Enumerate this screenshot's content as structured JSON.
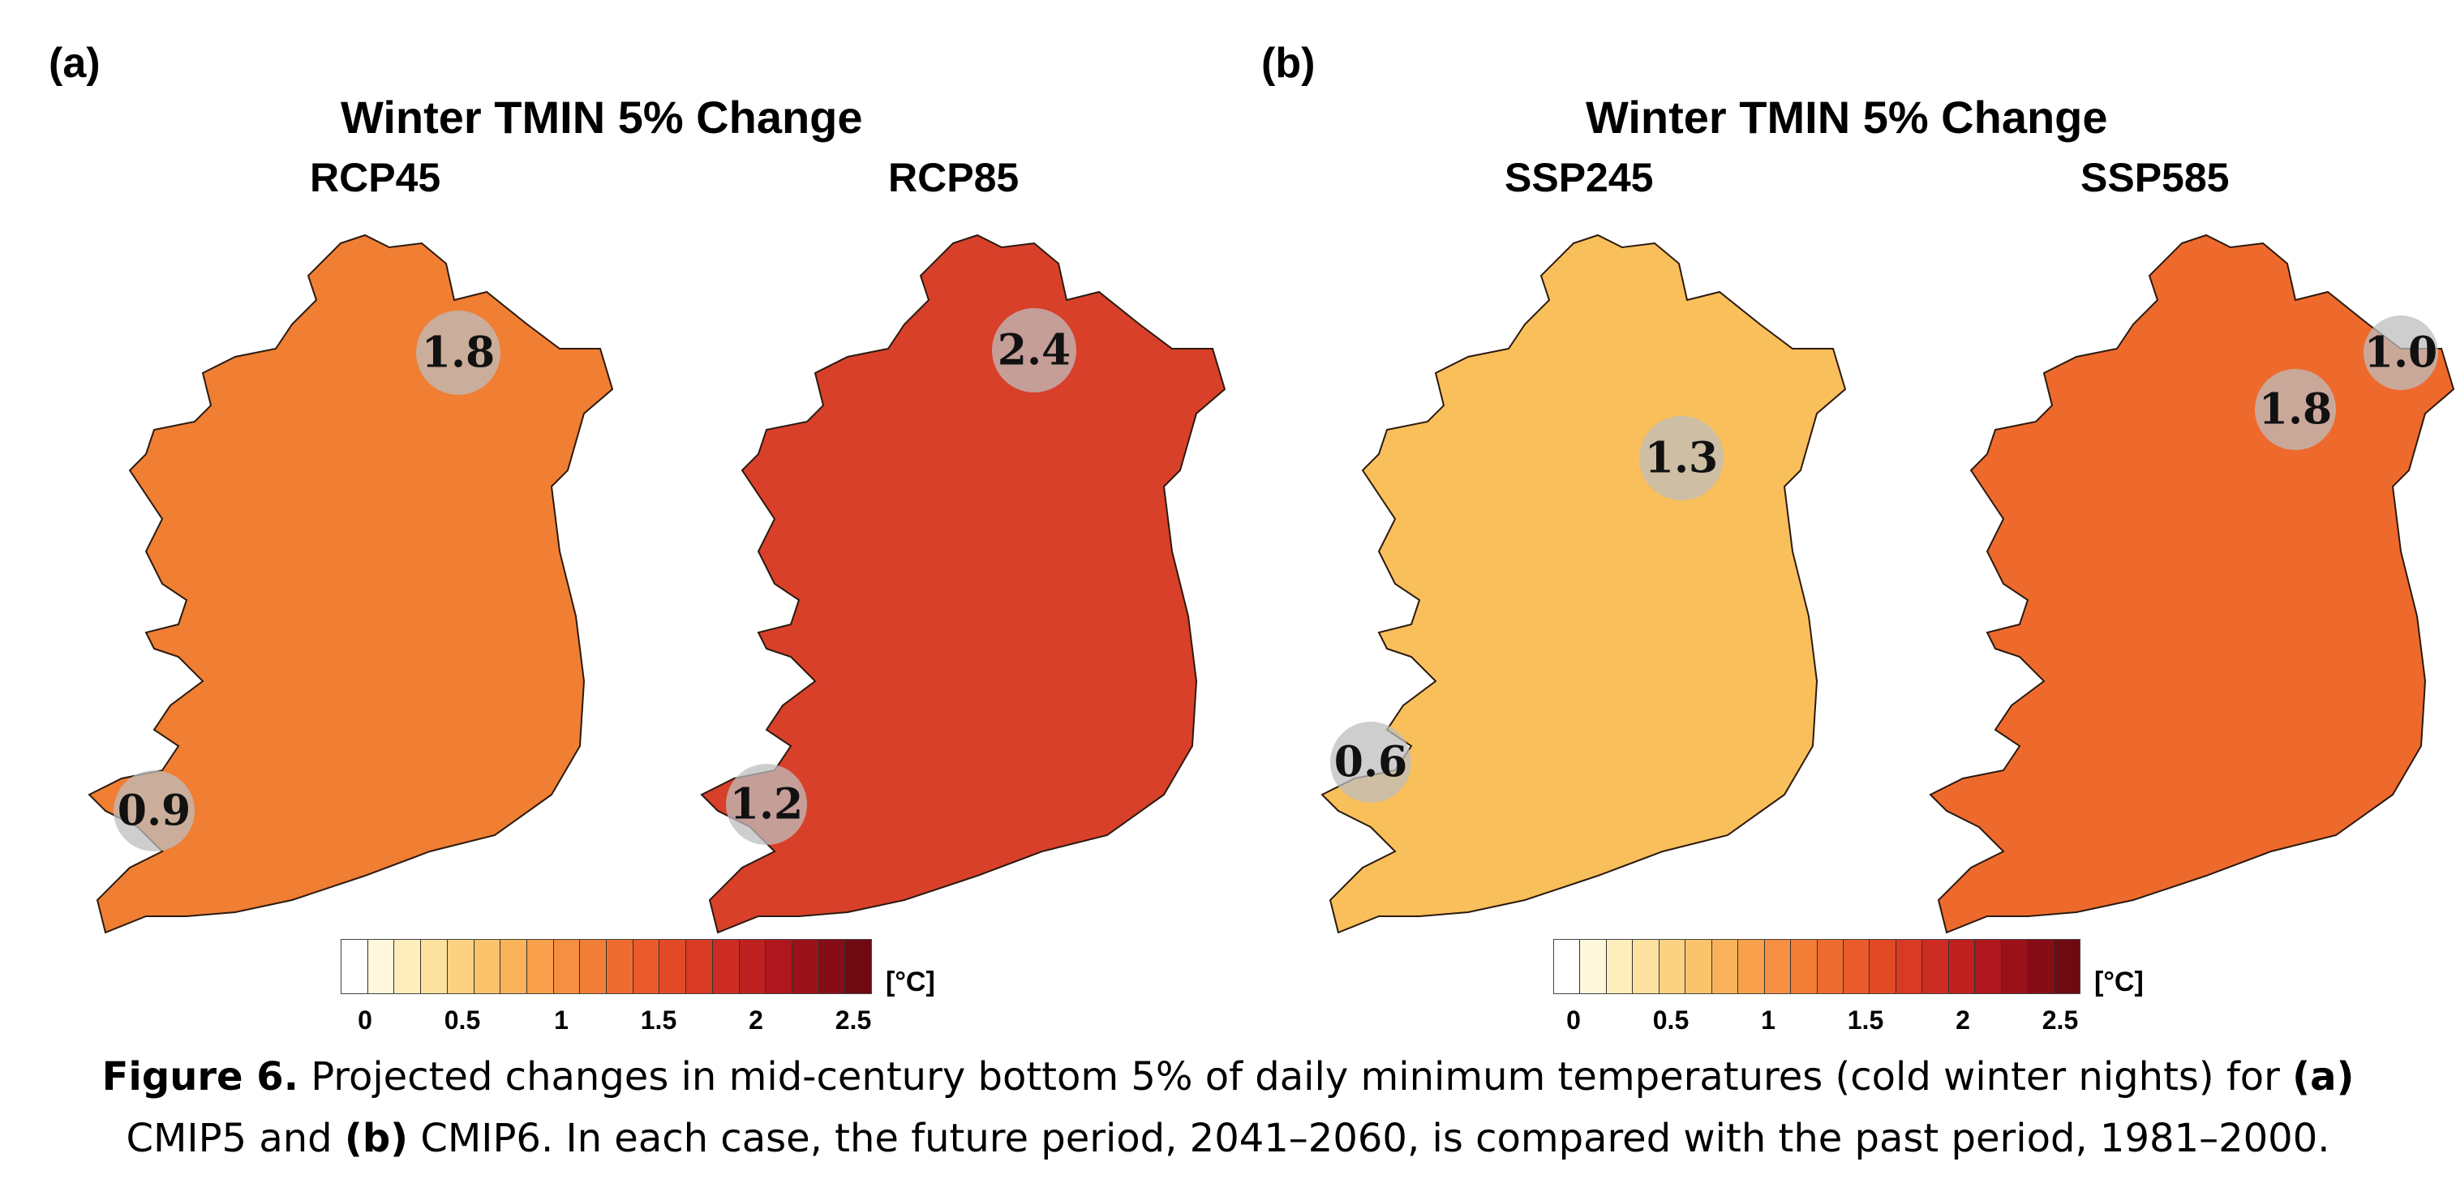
{
  "panel_a": {
    "tag": "(a)",
    "title": "Winter TMIN 5% Change",
    "maps": [
      {
        "scenario": "RCP45",
        "fill": "#f07e33",
        "values": [
          "1.8",
          "0.9"
        ]
      },
      {
        "scenario": "RCP85",
        "fill": "#d9402a",
        "values": [
          "2.4",
          "1.2"
        ]
      }
    ],
    "colorbar": {
      "unit": "[°C]",
      "ticks": [
        "0",
        "0.5",
        "1",
        "1.5",
        "2",
        "2.5"
      ]
    }
  },
  "panel_b": {
    "tag": "(b)",
    "title": "Winter TMIN 5% Change",
    "maps": [
      {
        "scenario": "SSP245",
        "fill": "#f9bf5a",
        "values": [
          "1.3",
          "0.6"
        ]
      },
      {
        "scenario": "SSP585",
        "fill": "#ee6a2c",
        "values": [
          "1.8",
          "1.0"
        ]
      }
    ],
    "colorbar": {
      "unit": "[°C]",
      "ticks": [
        "0",
        "0.5",
        "1",
        "1.5",
        "2",
        "2.5"
      ]
    }
  },
  "colorbar_colors": [
    "#ffffff",
    "#fff7dc",
    "#feeebd",
    "#fde19e",
    "#fcd282",
    "#fbc36b",
    "#f9b259",
    "#f8a04c",
    "#f68f42",
    "#f27e38",
    "#ee6c30",
    "#e95b2a",
    "#e24a26",
    "#d93a23",
    "#cd2c22",
    "#bf2020",
    "#ae171d",
    "#9b111a",
    "#860d16",
    "#700a12"
  ],
  "caption": {
    "fig_label": "Figure 6.",
    "line1_text": " Projected changes in mid-century bottom 5% of daily minimum temperatures (cold winter nights) for ",
    "a_label": "(a)",
    "line2_start": "CMIP5 and ",
    "b_label": "(b)",
    "line2_text": " CMIP6. In each case, the future period, 2041–2060, is compared with the past period, 1981–2000."
  }
}
